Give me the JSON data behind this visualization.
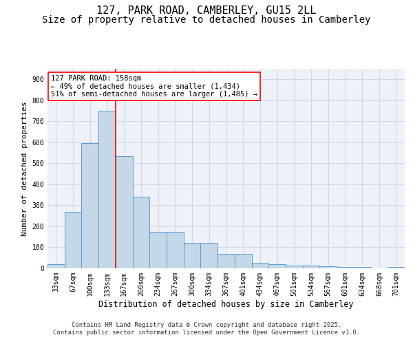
{
  "title": "127, PARK ROAD, CAMBERLEY, GU15 2LL",
  "subtitle": "Size of property relative to detached houses in Camberley",
  "xlabel": "Distribution of detached houses by size in Camberley",
  "ylabel": "Number of detached properties",
  "categories": [
    "33sqm",
    "67sqm",
    "100sqm",
    "133sqm",
    "167sqm",
    "200sqm",
    "234sqm",
    "267sqm",
    "300sqm",
    "334sqm",
    "367sqm",
    "401sqm",
    "434sqm",
    "467sqm",
    "501sqm",
    "534sqm",
    "567sqm",
    "601sqm",
    "634sqm",
    "668sqm",
    "701sqm"
  ],
  "values": [
    20,
    270,
    595,
    750,
    535,
    340,
    175,
    175,
    120,
    120,
    68,
    68,
    25,
    20,
    12,
    12,
    10,
    5,
    5,
    0,
    5
  ],
  "bar_color": "#c5d8e8",
  "bar_edge_color": "#5b9bd5",
  "grid_color": "#d0d8e8",
  "background_color": "#ffffff",
  "plot_bg_color": "#eef2f8",
  "vline_color": "red",
  "vline_position": 3.5,
  "annotation_text": "127 PARK ROAD: 158sqm\n← 49% of detached houses are smaller (1,434)\n51% of semi-detached houses are larger (1,485) →",
  "ylim": [
    0,
    950
  ],
  "yticks": [
    0,
    100,
    200,
    300,
    400,
    500,
    600,
    700,
    800,
    900
  ],
  "footer_line1": "Contains HM Land Registry data © Crown copyright and database right 2025.",
  "footer_line2": "Contains public sector information licensed under the Open Government Licence v3.0.",
  "title_fontsize": 11,
  "subtitle_fontsize": 10,
  "xlabel_fontsize": 8.5,
  "ylabel_fontsize": 8,
  "tick_fontsize": 7,
  "footer_fontsize": 6.5,
  "annotation_fontsize": 7.5
}
